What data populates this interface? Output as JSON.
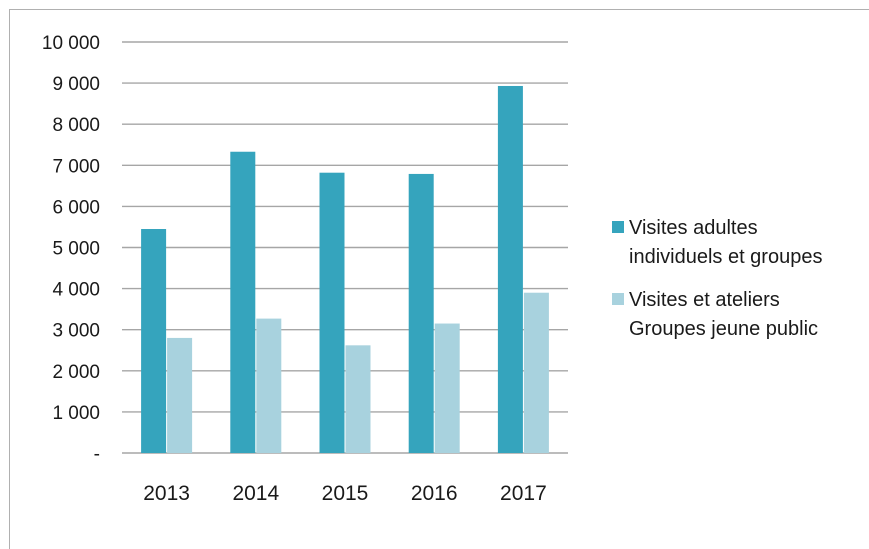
{
  "chart_data": {
    "type": "bar",
    "categories": [
      "2013",
      "2014",
      "2015",
      "2016",
      "2017"
    ],
    "series": [
      {
        "name": "Visites adultes individuels et groupes",
        "color": "#35a4bd",
        "values": [
          5450,
          7330,
          6820,
          6790,
          8930
        ]
      },
      {
        "name": "Visites et ateliers Groupes jeune public",
        "color": "#a8d2de",
        "values": [
          2800,
          3270,
          2620,
          3150,
          3900
        ]
      }
    ],
    "y_ticks": [
      {
        "value": 0,
        "label": "-"
      },
      {
        "value": 1000,
        "label": "1 000"
      },
      {
        "value": 2000,
        "label": "2 000"
      },
      {
        "value": 3000,
        "label": "3 000"
      },
      {
        "value": 4000,
        "label": "4 000"
      },
      {
        "value": 5000,
        "label": "5 000"
      },
      {
        "value": 6000,
        "label": "6 000"
      },
      {
        "value": 7000,
        "label": "7 000"
      },
      {
        "value": 8000,
        "label": "8 000"
      },
      {
        "value": 9000,
        "label": "9 000"
      },
      {
        "value": 10000,
        "label": "10 000"
      }
    ],
    "ylim": [
      0,
      10000
    ],
    "grid": true,
    "gridline_color": "#a6a6a6",
    "legend_position": "right",
    "legend_lines": [
      [
        "Visites adultes",
        "individuels et groupes"
      ],
      [
        "Visites et ateliers",
        "Groupes jeune public"
      ]
    ]
  }
}
